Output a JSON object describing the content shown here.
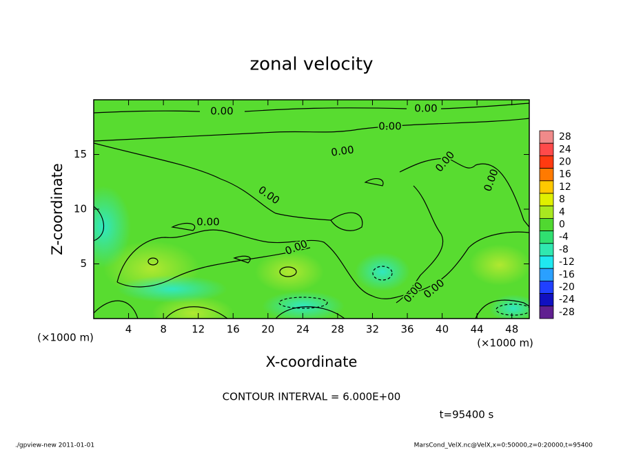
{
  "chart_data": {
    "type": "contour",
    "title": "zonal velocity",
    "x_label": "X-coordinate",
    "y_label": "Z-coordinate",
    "x_unit": "(×1000 m)",
    "y_unit": "(×1000 m)",
    "xlim": [
      0,
      50
    ],
    "xticks": [
      4,
      8,
      12,
      16,
      20,
      24,
      28,
      32,
      36,
      40,
      44,
      48
    ],
    "ylim": [
      0,
      20
    ],
    "yticks": [
      5,
      10,
      15
    ],
    "contour_labels": [
      "0.00",
      "0.00",
      "0.00",
      "0.00",
      "0.00",
      "0.00",
      "0.00",
      "0.00",
      "0.00",
      "0.00",
      "0.00"
    ],
    "contour_interval": "CONTOUR INTERVAL = 6.000E+00",
    "time_label": "t=95400 s",
    "colorbar": {
      "levels": [
        28,
        24,
        20,
        16,
        12,
        8,
        4,
        0,
        -4,
        -8,
        -12,
        -16,
        -20,
        -24,
        -28
      ],
      "colors": [
        "#f08a8a",
        "#ff4a4a",
        "#ff3a10",
        "#ff7a00",
        "#ffc800",
        "#e0f000",
        "#a8e820",
        "#50d830",
        "#30e070",
        "#30e8b0",
        "#20e8f0",
        "#2aa0ff",
        "#2040ff",
        "#1010c0",
        "#602090"
      ]
    },
    "footer_left": "./gpview-new  2011-01-01",
    "footer_right": "MarsCond_VelX.nc@VelX,x=0:50000,z=0:20000,t=95400"
  }
}
